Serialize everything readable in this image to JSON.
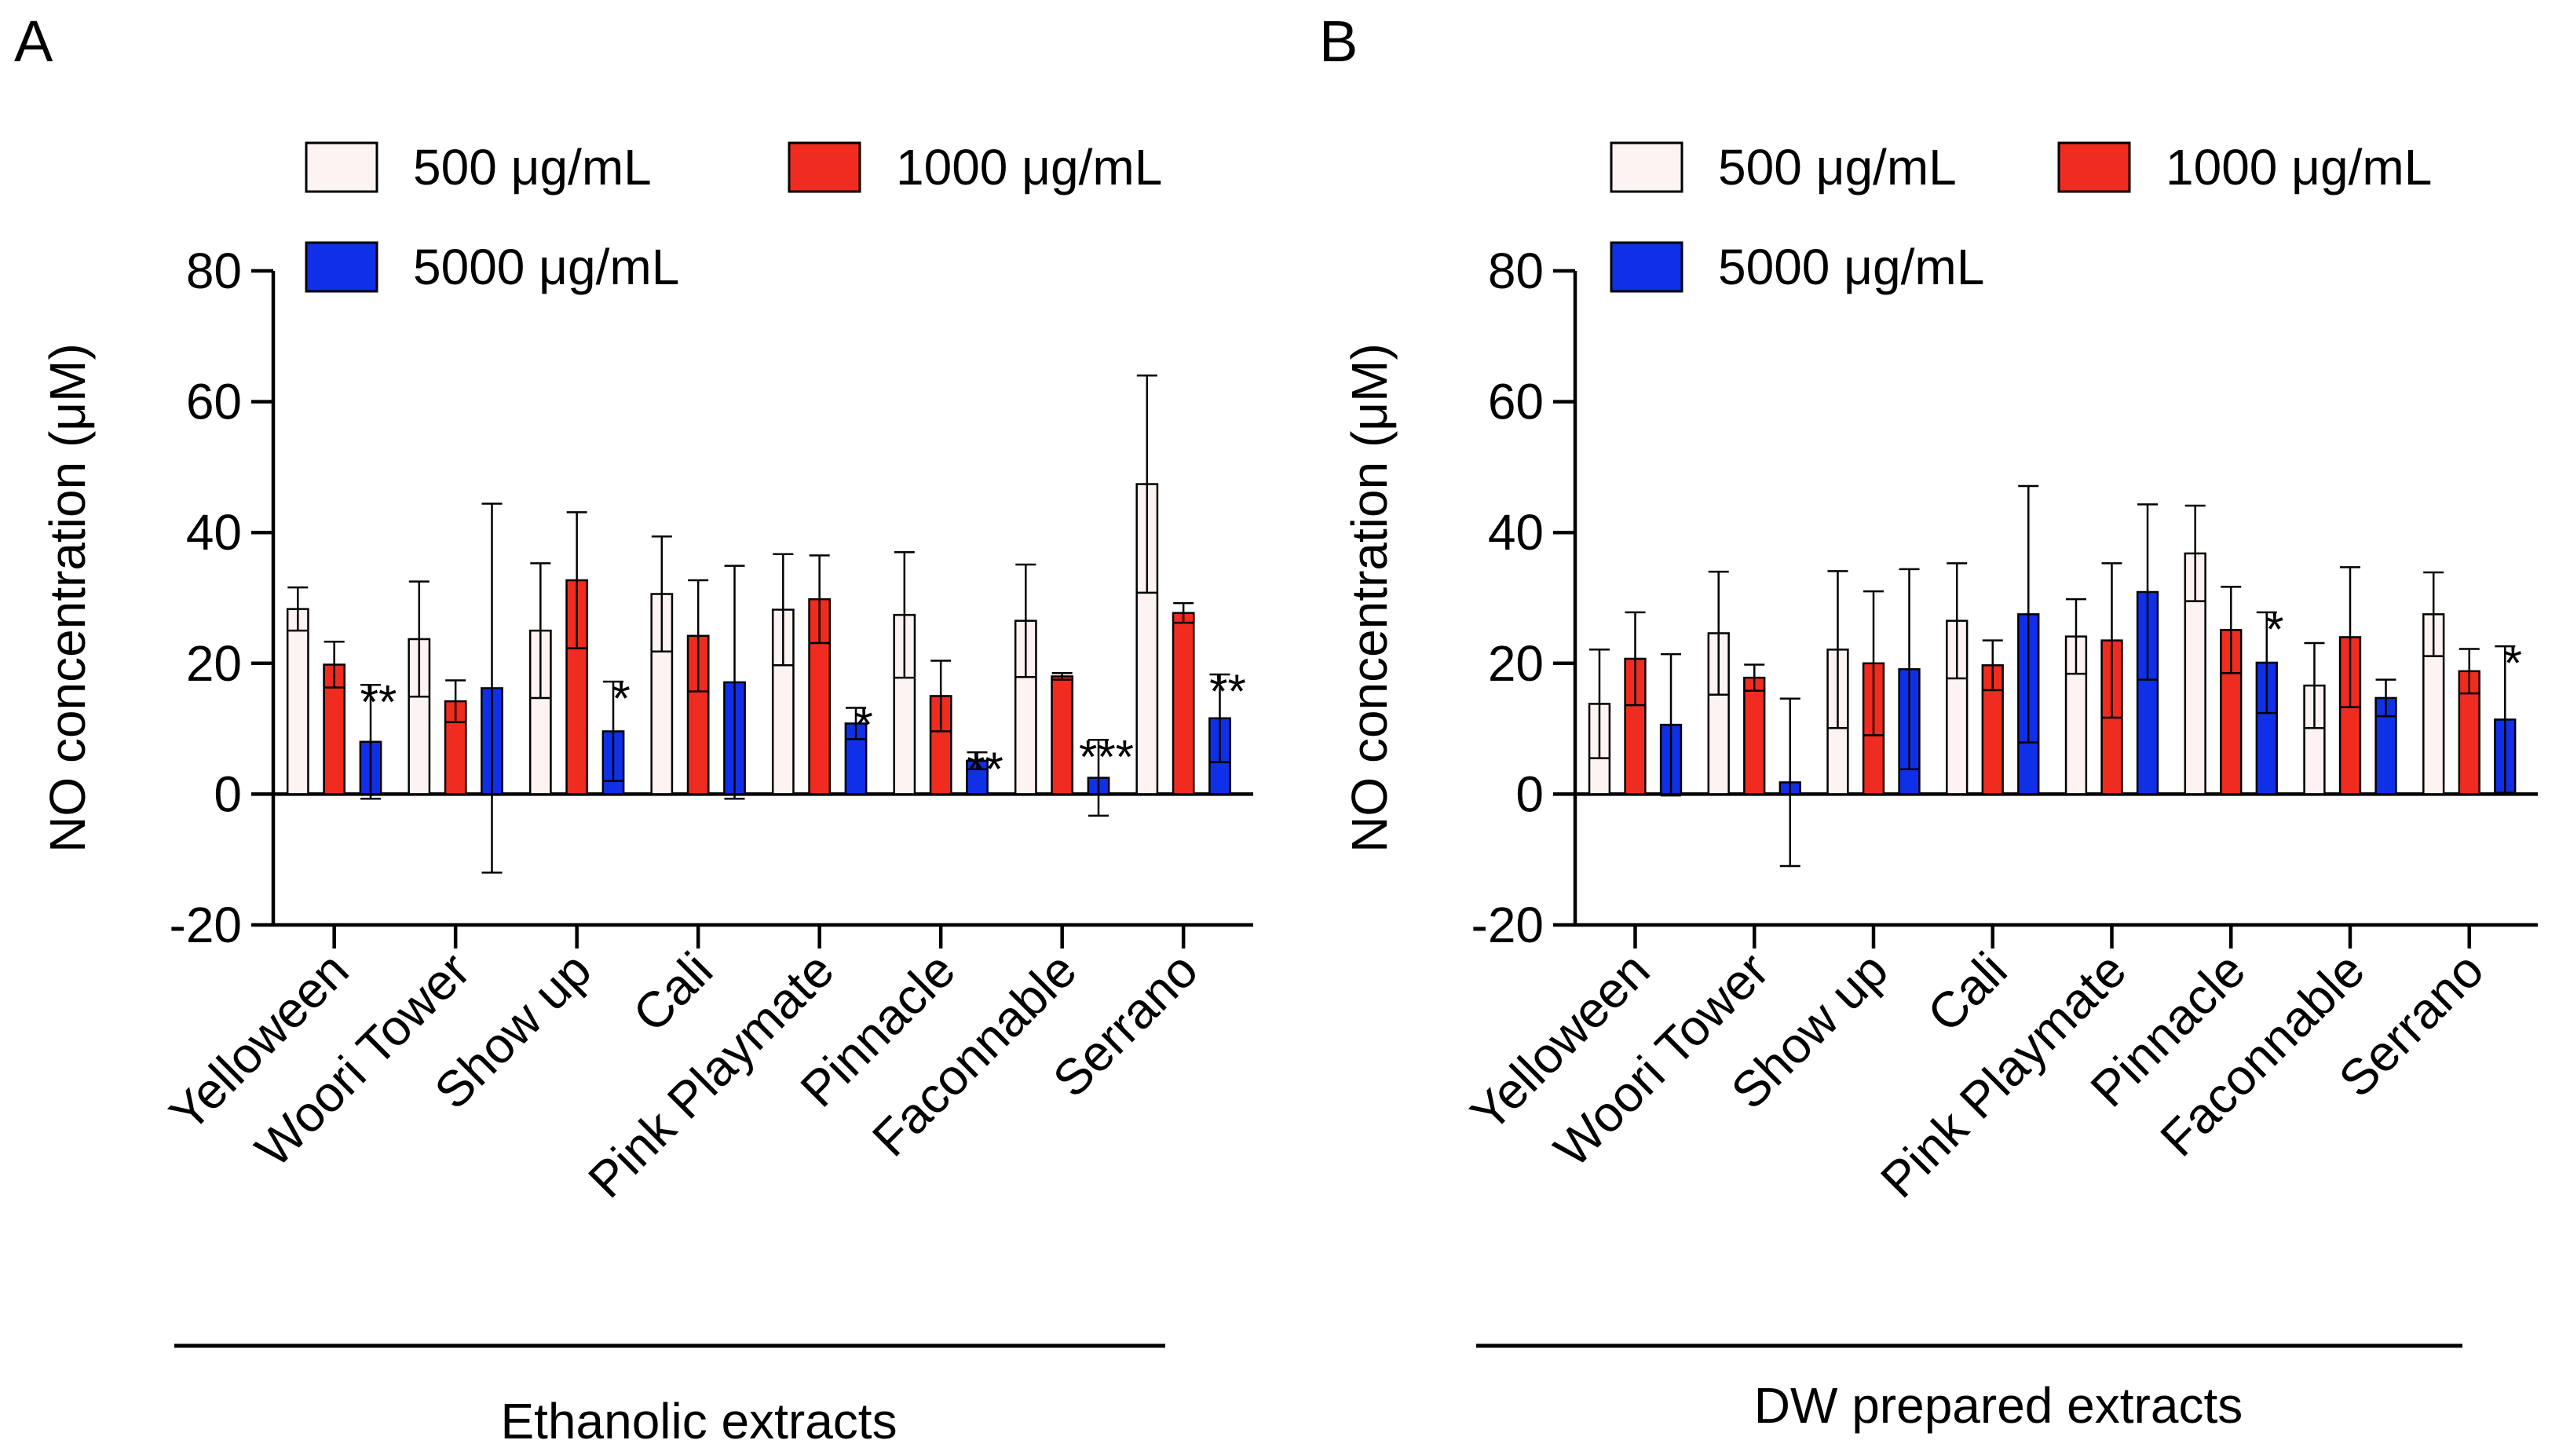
{
  "chart_data": [
    {
      "panel": "A",
      "type": "bar",
      "ylabel": "NO concentration (μM)",
      "ylim": [
        -20,
        80
      ],
      "yticks": [
        "-20",
        "0",
        "20",
        "40",
        "60",
        "80"
      ],
      "categories": [
        "Yelloween",
        "Woori Tower",
        "Show up",
        "Cali",
        "Pink Playmate",
        "Pinnacle",
        "Faconnable",
        "Serrano"
      ],
      "group_label": "Ethanolic extracts",
      "series": [
        {
          "name": "500 μg/mL",
          "color": "#fdf3f3",
          "values": [
            28.3,
            23.7,
            25.0,
            30.6,
            28.2,
            27.4,
            26.5,
            47.4
          ],
          "errors": [
            3.3,
            8.8,
            10.3,
            8.8,
            8.5,
            9.6,
            8.6,
            16.6
          ]
        },
        {
          "name": "1000 μg/mL",
          "color": "#ef2c1f",
          "values": [
            19.8,
            14.2,
            32.7,
            24.2,
            29.8,
            15.0,
            18.0,
            27.7
          ],
          "errors": [
            3.5,
            3.2,
            10.4,
            8.5,
            6.7,
            5.4,
            0.5,
            1.5
          ]
        },
        {
          "name": "5000 μg/mL",
          "color": "#1030e8",
          "values": [
            8.0,
            16.2,
            9.6,
            17.1,
            10.8,
            5.1,
            2.5,
            11.6
          ],
          "errors": [
            8.7,
            28.2,
            7.6,
            17.8,
            2.4,
            1.3,
            5.8,
            6.7
          ]
        }
      ],
      "significance": [
        {
          "category": "Yelloween",
          "label": "**"
        },
        {
          "category": "Show up",
          "label": "*"
        },
        {
          "category": "Pink Playmate",
          "label": "*"
        },
        {
          "category": "Pinnacle",
          "label": "**"
        },
        {
          "category": "Faconnable",
          "label": "***"
        },
        {
          "category": "Serrano",
          "label": "**"
        }
      ]
    },
    {
      "panel": "B",
      "type": "bar",
      "ylabel": "NO concentration (μM)",
      "ylim": [
        -20,
        80
      ],
      "yticks": [
        "-20",
        "0",
        "20",
        "40",
        "60",
        "80"
      ],
      "categories": [
        "Yelloween",
        "Woori Tower",
        "Show up",
        "Cali",
        "Pink Playmate",
        "Pinnacle",
        "Faconnable",
        "Serrano"
      ],
      "group_label": "DW prepared extracts",
      "series": [
        {
          "name": "500 μg/mL",
          "color": "#fdf3f3",
          "values": [
            13.8,
            24.6,
            22.1,
            26.5,
            24.1,
            36.8,
            16.6,
            27.5
          ],
          "errors": [
            8.3,
            9.4,
            12.0,
            8.8,
            5.7,
            7.3,
            6.5,
            6.4
          ]
        },
        {
          "name": "1000 μg/mL",
          "color": "#ef2c1f",
          "values": [
            20.7,
            17.8,
            20.0,
            19.7,
            23.5,
            25.1,
            24.0,
            18.8
          ],
          "errors": [
            7.1,
            2.0,
            11.0,
            3.8,
            11.8,
            6.6,
            10.7,
            3.4
          ]
        },
        {
          "name": "5000 μg/mL",
          "color": "#1030e8",
          "values": [
            10.6,
            1.8,
            19.1,
            27.5,
            30.9,
            20.1,
            14.7,
            11.4
          ],
          "errors": [
            10.8,
            12.8,
            15.3,
            19.6,
            13.4,
            7.7,
            2.8,
            11.2
          ]
        }
      ],
      "significance": [
        {
          "category": "Pinnacle",
          "label": "*"
        },
        {
          "category": "Serrano",
          "label": "*"
        }
      ]
    }
  ]
}
